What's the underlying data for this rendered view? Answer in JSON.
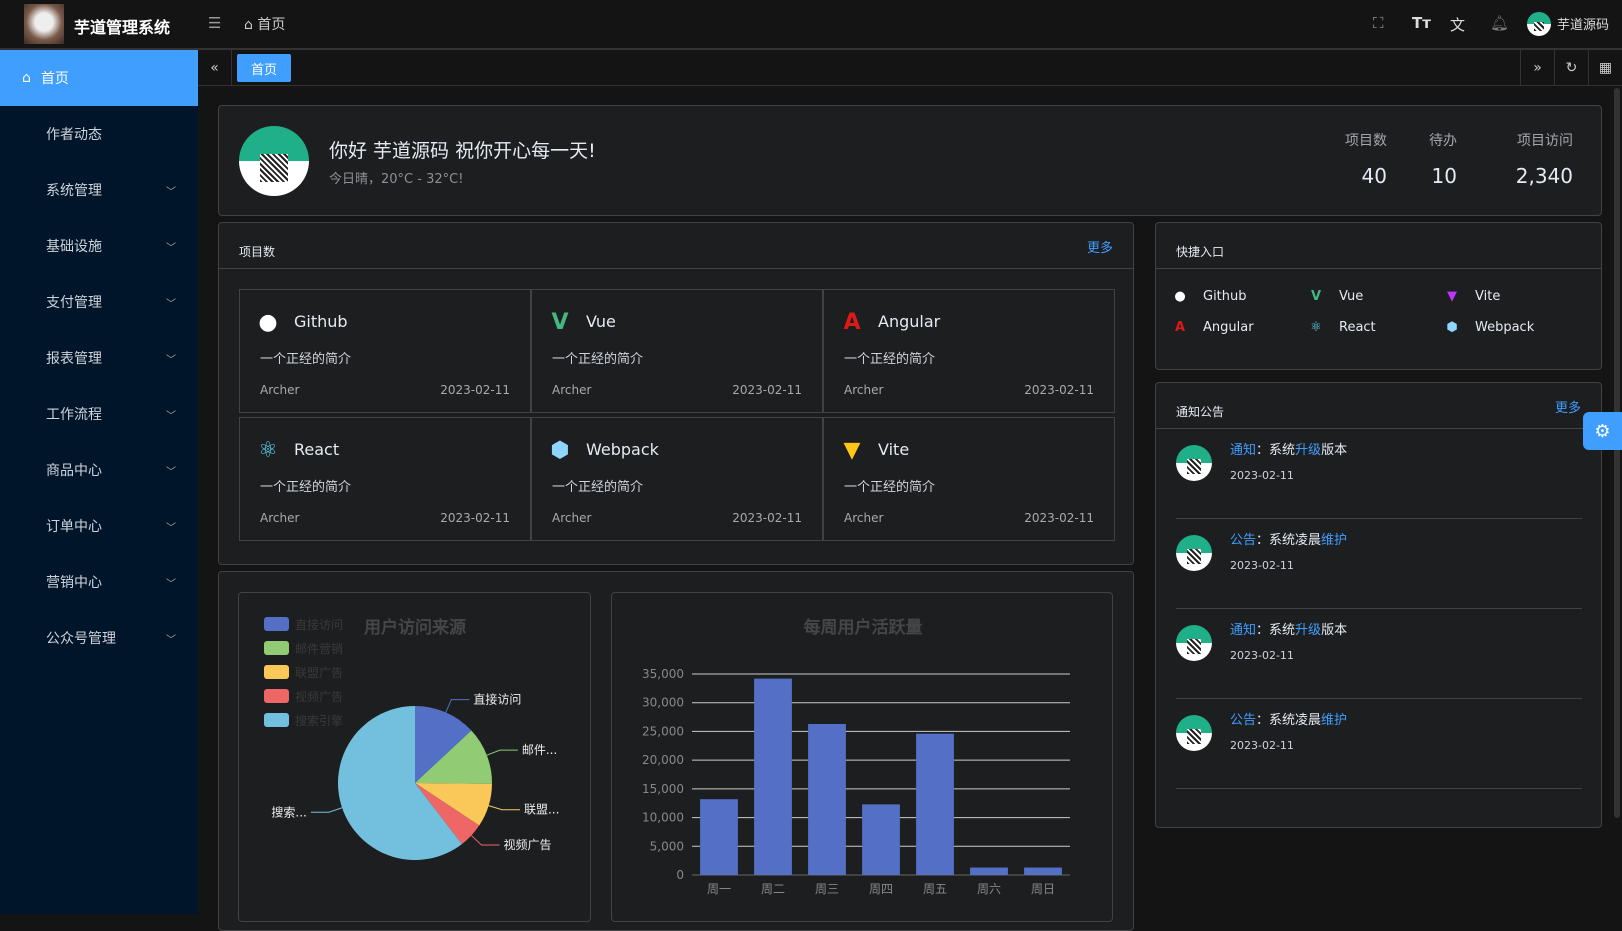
{
  "header": {
    "brand": "芋道管理系统",
    "breadcrumb": "首页",
    "user": "芋道源码"
  },
  "sidebar": {
    "items": [
      {
        "label": "首页",
        "active": true
      },
      {
        "label": "作者动态"
      },
      {
        "label": "系统管理",
        "sub": true
      },
      {
        "label": "基础设施",
        "sub": true
      },
      {
        "label": "支付管理",
        "sub": true
      },
      {
        "label": "报表管理",
        "sub": true
      },
      {
        "label": "工作流程",
        "sub": true
      },
      {
        "label": "商品中心",
        "sub": true
      },
      {
        "label": "订单中心",
        "sub": true
      },
      {
        "label": "营销中心",
        "sub": true
      },
      {
        "label": "公众号管理",
        "sub": true
      }
    ]
  },
  "tabs": {
    "active": "首页"
  },
  "welcome": {
    "greeting": "你好 芋道源码 祝你开心每一天!",
    "weather": "今日晴，20°C - 32°C!",
    "stats": [
      {
        "label": "项目数",
        "value": "40"
      },
      {
        "label": "待办",
        "value": "10"
      },
      {
        "label": "项目访问",
        "value": "2,340"
      }
    ]
  },
  "projects": {
    "title": "项目数",
    "more": "更多",
    "items": [
      {
        "name": "Github",
        "desc": "一个正经的简介",
        "author": "Archer",
        "date": "2023-02-11",
        "icon": "github-icon",
        "color": "#ffffff"
      },
      {
        "name": "Vue",
        "desc": "一个正经的简介",
        "author": "Archer",
        "date": "2023-02-11",
        "icon": "vue-icon",
        "color": "#42b883"
      },
      {
        "name": "Angular",
        "desc": "一个正经的简介",
        "author": "Archer",
        "date": "2023-02-11",
        "icon": "angular-icon",
        "color": "#dd1b16"
      },
      {
        "name": "React",
        "desc": "一个正经的简介",
        "author": "Archer",
        "date": "2023-02-11",
        "icon": "react-icon",
        "color": "#61dafb"
      },
      {
        "name": "Webpack",
        "desc": "一个正经的简介",
        "author": "Archer",
        "date": "2023-02-11",
        "icon": "webpack-icon",
        "color": "#8ed6fb"
      },
      {
        "name": "Vite",
        "desc": "一个正经的简介",
        "author": "Archer",
        "date": "2023-02-11",
        "icon": "vite-icon",
        "color": "#ffc517"
      }
    ]
  },
  "quick": {
    "title": "快捷入口",
    "items": [
      {
        "name": "Github",
        "color": "#ffffff"
      },
      {
        "name": "Vue",
        "color": "#42b883"
      },
      {
        "name": "Vite",
        "color": "#bd34fe"
      },
      {
        "name": "Angular",
        "color": "#dd1b16"
      },
      {
        "name": "React",
        "color": "#61dafb"
      },
      {
        "name": "Webpack",
        "color": "#8ed6fb"
      }
    ]
  },
  "notice": {
    "title": "通知公告",
    "more": "更多",
    "items": [
      {
        "type": "通知",
        "sep": "：",
        "a": "系统",
        "b": "升级",
        "c": "版本",
        "date": "2023-02-11"
      },
      {
        "type": "公告",
        "sep": "：",
        "a": "系统凌晨",
        "b": "维护",
        "c": "",
        "date": "2023-02-11"
      },
      {
        "type": "通知",
        "sep": "：",
        "a": "系统",
        "b": "升级",
        "c": "版本",
        "date": "2023-02-11"
      },
      {
        "type": "公告",
        "sep": "：",
        "a": "系统凌晨",
        "b": "维护",
        "c": "",
        "date": "2023-02-11"
      }
    ]
  },
  "chart_data": [
    {
      "type": "pie",
      "title": "用户访问来源",
      "legend_position": "top-left",
      "categories": [
        "直接访问",
        "邮件营销",
        "联盟广告",
        "视频广告",
        "搜索引擎"
      ],
      "values": [
        335,
        310,
        234,
        135,
        1548
      ],
      "colors": [
        "#5470c6",
        "#91cc75",
        "#fac858",
        "#ee6666",
        "#73c0de"
      ],
      "labels": [
        "直接访问",
        "邮件...",
        "联盟...",
        "视频广告",
        "搜索..."
      ]
    },
    {
      "type": "bar",
      "title": "每周用户活跃量",
      "categories": [
        "周一",
        "周二",
        "周三",
        "周四",
        "周五",
        "周六",
        "周日"
      ],
      "values": [
        13200,
        34200,
        26300,
        12300,
        24600,
        1300,
        1300
      ],
      "ylim": [
        0,
        35000
      ],
      "yticks": [
        "0",
        "5,000",
        "10,000",
        "15,000",
        "20,000",
        "25,000",
        "30,000",
        "35,000"
      ],
      "grid": true,
      "color": "#5470c6"
    }
  ]
}
